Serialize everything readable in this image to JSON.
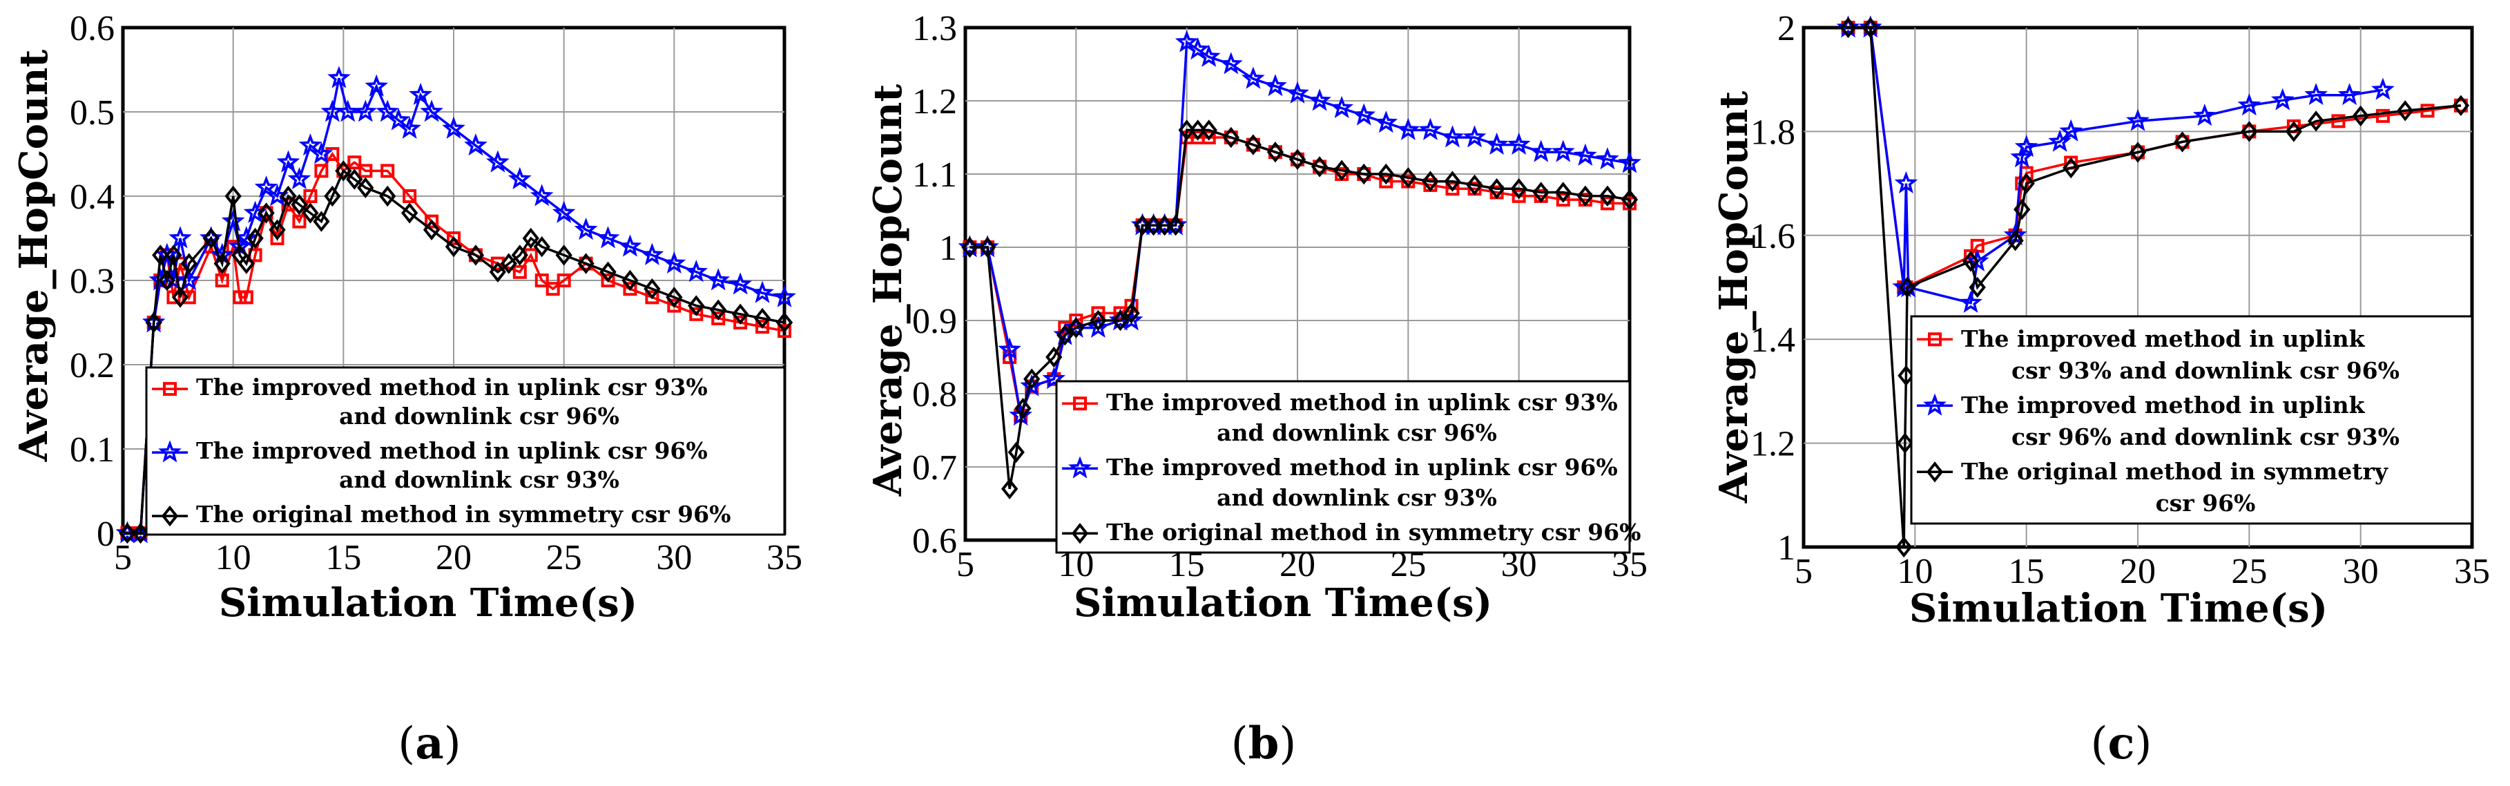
{
  "colors": {
    "improved_up93": "#ff0000",
    "improved_up96": "#0000ff",
    "original": "#000000"
  },
  "chart_data": [
    {
      "type": "line",
      "panel": "(a)",
      "panel_letter": "a",
      "xlabel": "Simulation Time(s)",
      "ylabel": "Average_HopCount",
      "xlim": [
        5,
        35
      ],
      "ylim": [
        0,
        0.6
      ],
      "xticks": [
        5,
        10,
        15,
        20,
        25,
        30,
        35
      ],
      "yticks": [
        0,
        0.1,
        0.2,
        0.3,
        0.4,
        0.5,
        0.6
      ],
      "xtick_labels": [
        "5",
        "10",
        "15",
        "20",
        "25",
        "30",
        "35"
      ],
      "ytick_labels": [
        "0",
        "0.1",
        "0.2",
        "0.3",
        "0.4",
        "0.5",
        "0.6"
      ],
      "legend": {
        "position": "bottom-middle",
        "entries": [
          {
            "lines": [
              "The improved method in uplink csr 93%",
              "and downlink csr 96%"
            ],
            "series": 0
          },
          {
            "lines": [
              "The improved method in uplink csr 96%",
              "and downlink csr 93%"
            ],
            "series": 1
          },
          {
            "lines": [
              "The original method in symmetry csr 96%"
            ],
            "series": 2
          }
        ]
      },
      "series": [
        {
          "name": "The improved method in uplink csr 93% and downlink csr 96%",
          "marker": "square",
          "color_key": "improved_up93",
          "x": [
            5.2,
            5.8,
            6.4,
            6.7,
            7.0,
            7.3,
            7.6,
            8.0,
            9.0,
            9.5,
            10.0,
            10.3,
            10.6,
            11.0,
            11.5,
            12.0,
            12.5,
            13.0,
            13.5,
            14.0,
            14.5,
            15.0,
            15.5,
            16.0,
            17.0,
            18.0,
            19.0,
            20.0,
            21.0,
            22.0,
            23.0,
            23.5,
            24.0,
            24.5,
            25.0,
            26.0,
            27.0,
            28.0,
            29.0,
            30.0,
            31.0,
            32.0,
            33.0,
            34.0,
            35.0
          ],
          "y": [
            0,
            0,
            0.25,
            0.3,
            0.33,
            0.28,
            0.32,
            0.28,
            0.34,
            0.3,
            0.34,
            0.28,
            0.28,
            0.33,
            0.38,
            0.35,
            0.39,
            0.37,
            0.4,
            0.43,
            0.45,
            0.43,
            0.44,
            0.43,
            0.43,
            0.4,
            0.37,
            0.35,
            0.33,
            0.32,
            0.31,
            0.33,
            0.3,
            0.29,
            0.3,
            0.32,
            0.3,
            0.29,
            0.28,
            0.27,
            0.26,
            0.255,
            0.25,
            0.245,
            0.24
          ]
        },
        {
          "name": "The improved method in uplink csr 96% and downlink csr 93%",
          "marker": "star",
          "color_key": "improved_up96",
          "x": [
            5.2,
            5.8,
            6.4,
            6.7,
            7.0,
            7.3,
            7.6,
            8.0,
            9.0,
            9.5,
            10.0,
            10.3,
            10.6,
            11.0,
            11.5,
            12.0,
            12.5,
            13.0,
            13.5,
            14.0,
            14.5,
            14.8,
            15.2,
            16.0,
            16.5,
            17.0,
            17.5,
            18.0,
            18.5,
            19.0,
            20.0,
            21.0,
            22.0,
            23.0,
            24.0,
            25.0,
            26.0,
            27.0,
            28.0,
            29.0,
            30.0,
            31.0,
            32.0,
            33.0,
            34.0,
            35.0
          ],
          "y": [
            0,
            0,
            0.25,
            0.3,
            0.33,
            0.3,
            0.35,
            0.3,
            0.35,
            0.33,
            0.37,
            0.34,
            0.35,
            0.38,
            0.41,
            0.4,
            0.44,
            0.42,
            0.46,
            0.45,
            0.5,
            0.54,
            0.5,
            0.5,
            0.53,
            0.5,
            0.49,
            0.48,
            0.52,
            0.5,
            0.48,
            0.46,
            0.44,
            0.42,
            0.4,
            0.38,
            0.36,
            0.35,
            0.34,
            0.33,
            0.32,
            0.31,
            0.3,
            0.295,
            0.285,
            0.28
          ]
        },
        {
          "name": "The original method in symmetry csr 96%",
          "marker": "diamond",
          "color_key": "original",
          "x": [
            5.2,
            5.8,
            6.4,
            6.7,
            7.0,
            7.3,
            7.6,
            8.0,
            9.0,
            9.5,
            10.0,
            10.3,
            10.6,
            11.0,
            11.5,
            12.0,
            12.5,
            13.0,
            13.5,
            14.0,
            14.5,
            15.0,
            15.5,
            16.0,
            17.0,
            18.0,
            19.0,
            20.0,
            21.0,
            22.0,
            22.5,
            23.0,
            23.5,
            24.0,
            25.0,
            26.0,
            27.0,
            28.0,
            29.0,
            30.0,
            31.0,
            32.0,
            33.0,
            34.0,
            35.0
          ],
          "y": [
            0,
            0,
            0.25,
            0.33,
            0.3,
            0.33,
            0.28,
            0.32,
            0.35,
            0.32,
            0.4,
            0.33,
            0.32,
            0.35,
            0.38,
            0.36,
            0.4,
            0.39,
            0.38,
            0.37,
            0.4,
            0.43,
            0.42,
            0.41,
            0.4,
            0.38,
            0.36,
            0.34,
            0.33,
            0.31,
            0.32,
            0.33,
            0.35,
            0.34,
            0.33,
            0.32,
            0.31,
            0.3,
            0.29,
            0.28,
            0.27,
            0.265,
            0.26,
            0.255,
            0.25
          ]
        }
      ]
    },
    {
      "type": "line",
      "panel": "(b)",
      "panel_letter": "b",
      "xlabel": "Simulation Time(s)",
      "ylabel": "Average_HopCount",
      "xlim": [
        5,
        35
      ],
      "ylim": [
        0.6,
        1.3
      ],
      "xticks": [
        5,
        10,
        15,
        20,
        25,
        30,
        35
      ],
      "yticks": [
        0.6,
        0.7,
        0.8,
        0.9,
        1.0,
        1.1,
        1.2,
        1.3
      ],
      "xtick_labels": [
        "5",
        "10",
        "15",
        "20",
        "25",
        "30",
        "35"
      ],
      "ytick_labels": [
        "0.6",
        "0.7",
        "0.8",
        "0.9",
        "1",
        "1.1",
        "1.2",
        "1.3"
      ],
      "legend": {
        "position": "bottom-right",
        "entries": [
          {
            "lines": [
              "The improved method in uplink csr 93%",
              "and downlink csr 96%"
            ],
            "series": 0
          },
          {
            "lines": [
              "The improved method in uplink csr 96%",
              "and downlink csr 93%"
            ],
            "series": 1
          },
          {
            "lines": [
              "The original method in symmetry csr 96%"
            ],
            "series": 2
          }
        ]
      },
      "series": [
        {
          "name": "The improved method in uplink csr 93% and downlink csr 96%",
          "marker": "square",
          "color_key": "improved_up93",
          "x": [
            5.2,
            6.0,
            7.0,
            7.5,
            8.0,
            9.0,
            9.5,
            10.0,
            11.0,
            12.0,
            12.5,
            13.0,
            13.5,
            14.0,
            14.5,
            15.0,
            15.5,
            16.0,
            17.0,
            18.0,
            19.0,
            20.0,
            21.0,
            22.0,
            23.0,
            24.0,
            25.0,
            26.0,
            27.0,
            28.0,
            29.0,
            30.0,
            31.0,
            32.0,
            33.0,
            34.0,
            35.0
          ],
          "y": [
            1.0,
            1.0,
            0.85,
            0.77,
            0.81,
            0.82,
            0.89,
            0.9,
            0.91,
            0.91,
            0.92,
            1.03,
            1.03,
            1.03,
            1.03,
            1.15,
            1.15,
            1.15,
            1.15,
            1.14,
            1.13,
            1.12,
            1.11,
            1.1,
            1.1,
            1.09,
            1.09,
            1.085,
            1.08,
            1.08,
            1.075,
            1.07,
            1.07,
            1.065,
            1.065,
            1.06,
            1.06
          ]
        },
        {
          "name": "The improved method in uplink csr 96% and downlink csr 93%",
          "marker": "star",
          "color_key": "improved_up96",
          "x": [
            5.2,
            6.0,
            7.0,
            7.5,
            8.0,
            9.0,
            9.5,
            10.0,
            11.0,
            12.0,
            12.5,
            13.0,
            13.5,
            14.0,
            14.5,
            15.0,
            15.5,
            16.0,
            17.0,
            18.0,
            19.0,
            20.0,
            21.0,
            22.0,
            23.0,
            24.0,
            25.0,
            26.0,
            27.0,
            28.0,
            29.0,
            30.0,
            31.0,
            32.0,
            33.0,
            34.0,
            35.0
          ],
          "y": [
            1.0,
            1.0,
            0.86,
            0.77,
            0.81,
            0.82,
            0.88,
            0.89,
            0.89,
            0.9,
            0.9,
            1.03,
            1.03,
            1.03,
            1.03,
            1.28,
            1.27,
            1.26,
            1.25,
            1.23,
            1.22,
            1.21,
            1.2,
            1.19,
            1.18,
            1.17,
            1.16,
            1.16,
            1.15,
            1.15,
            1.14,
            1.14,
            1.13,
            1.13,
            1.125,
            1.12,
            1.115
          ]
        },
        {
          "name": "The original method in symmetry csr 96%",
          "marker": "diamond",
          "color_key": "original",
          "x": [
            5.2,
            6.0,
            7.0,
            7.3,
            7.6,
            8.0,
            9.0,
            9.5,
            10.0,
            11.0,
            12.0,
            12.5,
            13.0,
            13.5,
            14.0,
            14.5,
            15.0,
            15.5,
            16.0,
            17.0,
            18.0,
            19.0,
            20.0,
            21.0,
            22.0,
            23.0,
            24.0,
            25.0,
            26.0,
            27.0,
            28.0,
            29.0,
            30.0,
            31.0,
            32.0,
            33.0,
            34.0,
            35.0
          ],
          "y": [
            1.0,
            1.0,
            0.67,
            0.72,
            0.78,
            0.82,
            0.85,
            0.88,
            0.89,
            0.9,
            0.9,
            0.91,
            1.03,
            1.03,
            1.03,
            1.03,
            1.16,
            1.16,
            1.16,
            1.15,
            1.14,
            1.13,
            1.12,
            1.11,
            1.105,
            1.1,
            1.1,
            1.095,
            1.09,
            1.09,
            1.085,
            1.08,
            1.08,
            1.075,
            1.075,
            1.07,
            1.07,
            1.065
          ]
        }
      ]
    },
    {
      "type": "line",
      "panel": "(c)",
      "panel_letter": "c",
      "xlabel": "Simulation Time(s)",
      "ylabel": "Average_HopCount",
      "xlim": [
        5,
        35
      ],
      "ylim": [
        1,
        2
      ],
      "xticks": [
        5,
        10,
        15,
        20,
        25,
        30,
        35
      ],
      "yticks": [
        1,
        1.2,
        1.4,
        1.6,
        1.8,
        2
      ],
      "xtick_labels": [
        "5",
        "10",
        "15",
        "20",
        "25",
        "30",
        "35"
      ],
      "ytick_labels": [
        "1",
        "1.2",
        "1.4",
        "1.6",
        "1.8",
        "2"
      ],
      "legend": {
        "position": "middle-right",
        "entries": [
          {
            "lines": [
              "The improved method in uplink",
              "csr 93% and downlink csr 96%"
            ],
            "series": 0
          },
          {
            "lines": [
              "The improved method in uplink",
              "csr 96% and downlink csr 93%"
            ],
            "series": 1
          },
          {
            "lines": [
              "The original method in symmetry",
              "csr 96%"
            ],
            "series": 2
          }
        ]
      },
      "series": [
        {
          "name": "The improved method in uplink csr 93% and downlink csr 96%",
          "marker": "square",
          "color_key": "improved_up93",
          "x": [
            7.0,
            8.0,
            9.5,
            9.6,
            12.5,
            12.8,
            14.5,
            14.8,
            15.0,
            17.0,
            20.0,
            22.0,
            25.0,
            27.0,
            29.0,
            31.0,
            33.0,
            34.5
          ],
          "y": [
            2.0,
            2.0,
            1.5,
            1.5,
            1.56,
            1.58,
            1.6,
            1.7,
            1.72,
            1.74,
            1.76,
            1.78,
            1.8,
            1.81,
            1.82,
            1.83,
            1.84,
            1.85
          ]
        },
        {
          "name": "The improved method in uplink csr 96% and downlink csr 93%",
          "marker": "star",
          "color_key": "improved_up96",
          "x": [
            7.0,
            8.0,
            9.5,
            9.6,
            9.7,
            12.5,
            12.8,
            14.5,
            14.8,
            15.0,
            16.5,
            17.0,
            20.0,
            23.0,
            25.0,
            26.5,
            28.0,
            29.5,
            31.0
          ],
          "y": [
            2.0,
            2.0,
            1.5,
            1.7,
            1.5,
            1.47,
            1.55,
            1.6,
            1.75,
            1.77,
            1.78,
            1.8,
            1.82,
            1.83,
            1.85,
            1.86,
            1.87,
            1.87,
            1.88
          ]
        },
        {
          "name": "The original method in symmetry csr 96%",
          "marker": "diamond",
          "color_key": "original",
          "x": [
            7.0,
            8.0,
            9.5,
            9.55,
            9.6,
            9.65,
            12.5,
            12.8,
            14.5,
            14.8,
            15.0,
            17.0,
            20.0,
            22.0,
            25.0,
            27.0,
            28.0,
            30.0,
            32.0,
            34.5
          ],
          "y": [
            2.0,
            2.0,
            1.0,
            1.2,
            1.33,
            1.5,
            1.55,
            1.5,
            1.59,
            1.65,
            1.7,
            1.73,
            1.76,
            1.78,
            1.8,
            1.8,
            1.82,
            1.83,
            1.84,
            1.85
          ]
        }
      ]
    }
  ]
}
